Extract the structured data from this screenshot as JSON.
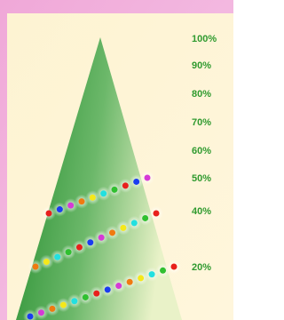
{
  "scale": {
    "labels": [
      "100%",
      "90%",
      "80%",
      "70%",
      "60%",
      "50%",
      "40%",
      "20%"
    ]
  }
}
